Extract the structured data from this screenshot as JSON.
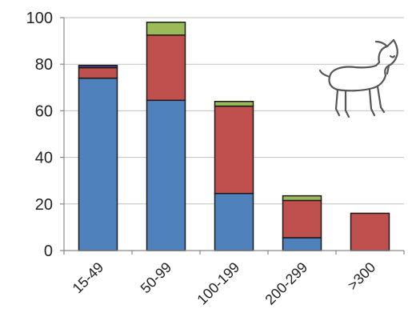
{
  "chart_data": {
    "type": "bar",
    "stacked": true,
    "categories": [
      "15-49",
      "50-99",
      "100-199",
      "200-299",
      ">300"
    ],
    "series": [
      {
        "values": [
          74,
          64.5,
          24.5,
          5.5,
          0
        ],
        "color": "#4f81bd"
      },
      {
        "values": [
          4.5,
          28,
          37.5,
          16,
          16
        ],
        "color": "#c0504d"
      },
      {
        "values": [
          0,
          5.5,
          2,
          2,
          0
        ],
        "color": "#9bbb59"
      },
      {
        "values": [
          1,
          0,
          0,
          0,
          0
        ],
        "color": "#4b3f8a"
      }
    ],
    "ylim": [
      0,
      100
    ],
    "yticks": [
      0,
      20,
      40,
      60,
      80,
      100
    ],
    "grid": true,
    "legend": "none",
    "title": "",
    "xlabel": "",
    "ylabel": "",
    "illustration": "goat-icon"
  }
}
